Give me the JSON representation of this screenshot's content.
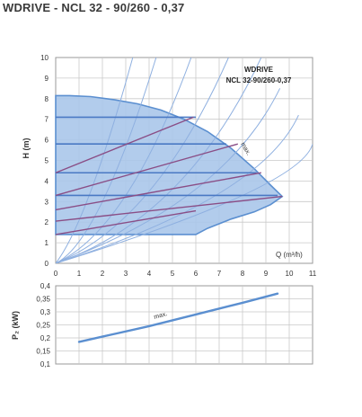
{
  "page_title": "WDRIVE - NCL 32 - 90/260 - 0,37",
  "colors": {
    "blue_band": "#4a79c4",
    "purple_line": "#8a4e86",
    "system_curve": "#8fb0e0",
    "envelope_fill": "#aac6ea",
    "envelope_stroke": "#5b8fd0",
    "grid": "#c9c9c9"
  },
  "chart_data": [
    {
      "type": "line",
      "legend_title": "WDRIVE",
      "legend_subtitle": "NCL 32-90/260-0,37",
      "xlabel": "Q (m³/h)",
      "ylabel": "H (m)",
      "xlim": [
        0,
        11
      ],
      "ylim": [
        0,
        10
      ],
      "x_ticks": [
        "0",
        "1",
        "2",
        "3",
        "4",
        "5",
        "6",
        "7",
        "8",
        "9",
        "10",
        "11"
      ],
      "y_ticks": [
        "0",
        "1",
        "2",
        "3",
        "4",
        "5",
        "6",
        "7",
        "8",
        "9",
        "10"
      ],
      "grid": true,
      "max_label": "max.",
      "envelope": {
        "x": [
          0,
          0,
          0.6,
          1.5,
          2.5,
          3.5,
          4.5,
          5.5,
          6.5,
          7.5,
          8.5,
          9.2,
          9.7,
          9.2,
          8.5,
          7.5,
          6.5,
          6.0,
          0
        ],
        "y": [
          1.4,
          8.15,
          8.15,
          8.1,
          7.95,
          7.75,
          7.45,
          7.0,
          6.4,
          5.6,
          4.6,
          3.8,
          3.25,
          2.85,
          2.5,
          2.15,
          1.7,
          1.4,
          1.4
        ]
      },
      "constant_pressure_lines": [
        {
          "x": [
            0,
            6.0
          ],
          "y": [
            7.1,
            7.1
          ]
        },
        {
          "x": [
            0,
            7.3
          ],
          "y": [
            5.8,
            5.8
          ]
        },
        {
          "x": [
            0,
            8.6
          ],
          "y": [
            4.4,
            4.4
          ]
        },
        {
          "x": [
            0,
            9.5
          ],
          "y": [
            3.3,
            3.3
          ]
        }
      ],
      "proportional_pressure_lines": [
        {
          "x": [
            0,
            6.0
          ],
          "y": [
            1.4,
            2.55
          ]
        },
        {
          "x": [
            0,
            9.7
          ],
          "y": [
            2.05,
            3.25
          ]
        },
        {
          "x": [
            0,
            8.8
          ],
          "y": [
            2.6,
            4.4
          ]
        },
        {
          "x": [
            0,
            7.8
          ],
          "y": [
            3.3,
            5.8
          ]
        },
        {
          "x": [
            0,
            5.9
          ],
          "y": [
            4.4,
            7.1
          ]
        }
      ],
      "system_curves": [
        {
          "x": [
            0,
            1.5,
            3.3
          ],
          "y": [
            0,
            3.5,
            10
          ]
        },
        {
          "x": [
            0,
            2.0,
            4.3
          ],
          "y": [
            0,
            3.0,
            10
          ]
        },
        {
          "x": [
            0,
            3.0,
            5.8
          ],
          "y": [
            0,
            3.3,
            10
          ]
        },
        {
          "x": [
            0,
            4.0,
            7.4
          ],
          "y": [
            0,
            3.5,
            10
          ]
        },
        {
          "x": [
            0,
            5.0,
            8.8
          ],
          "y": [
            0,
            3.6,
            10
          ]
        },
        {
          "x": [
            0,
            6.0,
            9.6
          ],
          "y": [
            0,
            3.6,
            8.5
          ]
        },
        {
          "x": [
            0,
            7.0,
            10.4
          ],
          "y": [
            0,
            3.4,
            7.2
          ]
        },
        {
          "x": [
            0,
            8.0,
            11.0
          ],
          "y": [
            0,
            3.3,
            5.8
          ]
        }
      ]
    },
    {
      "type": "line",
      "xlabel": "",
      "ylabel": "P₂ (kW)",
      "xlim": [
        0,
        11
      ],
      "ylim": [
        0.1,
        0.4
      ],
      "y_ticks": [
        "0,4",
        "0,35",
        "0,3",
        "0,25",
        "0,2",
        "0,15",
        "0,1"
      ],
      "grid": true,
      "max_label": "max.",
      "series": [
        {
          "x": [
            1.0,
            2.0,
            4.0,
            6.0,
            8.0,
            9.5
          ],
          "y": [
            0.185,
            0.205,
            0.245,
            0.29,
            0.335,
            0.37
          ]
        }
      ]
    }
  ]
}
